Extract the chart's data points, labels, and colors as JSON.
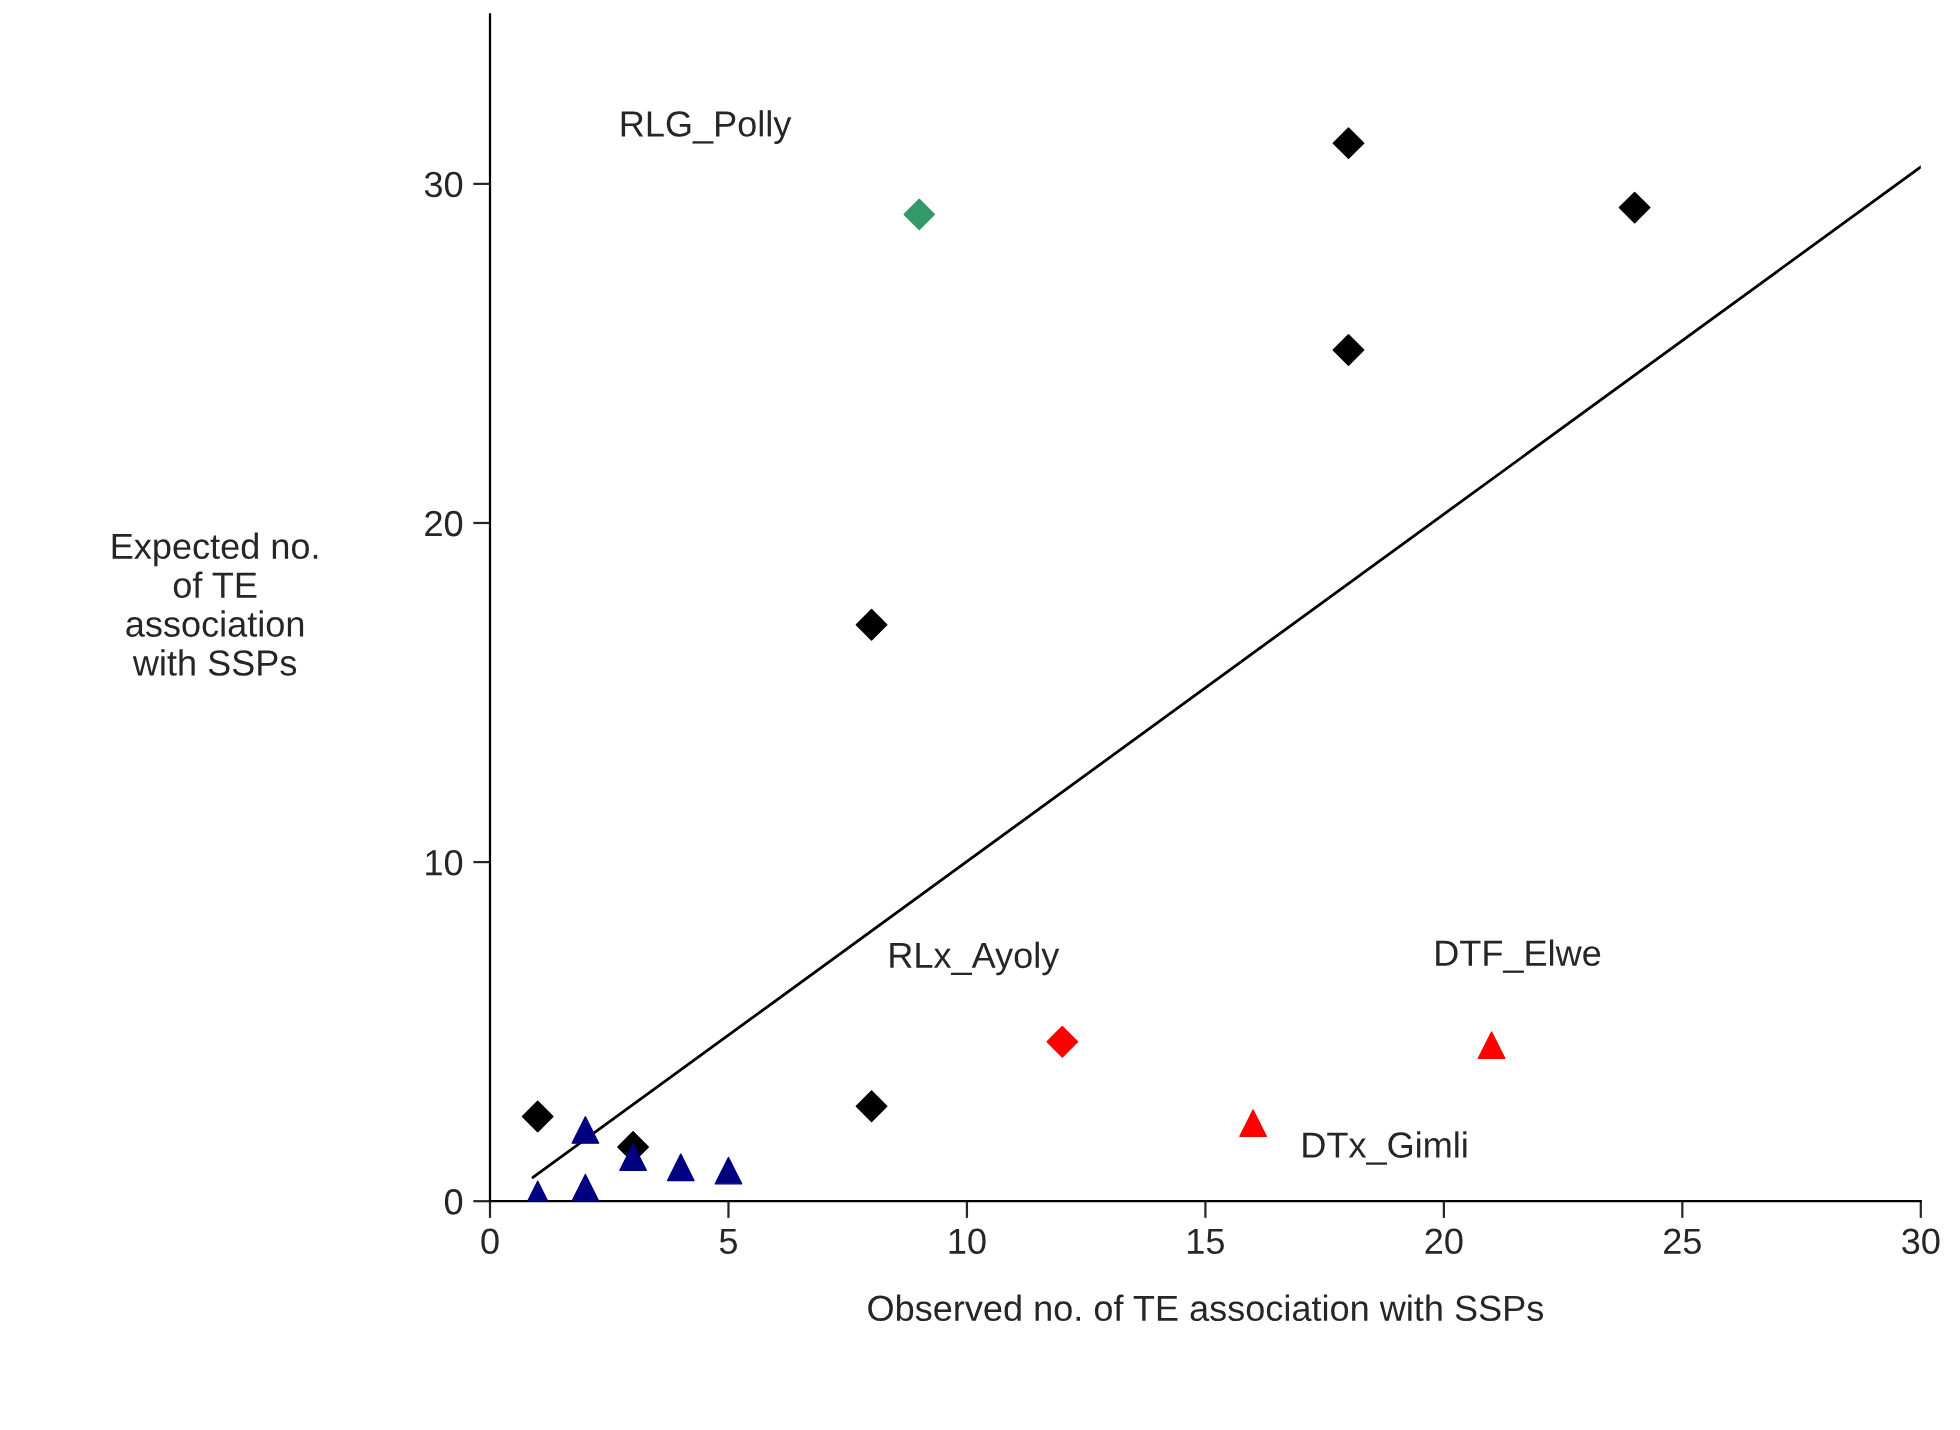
{
  "chart_data": {
    "type": "scatter",
    "xlabel": "Observed no. of TE association with SSPs",
    "ylabel": "Expected no.\nof TE\nassociation\nwith SSPs",
    "xlim": [
      0,
      30
    ],
    "ylim": [
      0,
      35
    ],
    "xticks": [
      0,
      5,
      10,
      15,
      20,
      25,
      30
    ],
    "yticks": [
      0,
      10,
      20,
      30
    ],
    "grid": false,
    "legend": false,
    "series": [
      {
        "marker": "diamond",
        "color": "#000000",
        "x": [
          1,
          3,
          8,
          8,
          18,
          18,
          24
        ],
        "values": [
          2.5,
          1.6,
          2.8,
          17.0,
          25.1,
          31.2,
          29.3
        ]
      },
      {
        "marker": "triangle",
        "color": "#000080",
        "x": [
          1,
          2,
          2,
          3,
          4,
          5
        ],
        "values": [
          0.2,
          2.1,
          0.4,
          1.3,
          1.0,
          0.9
        ]
      },
      {
        "marker": "diamond",
        "color": "#339966",
        "x": [
          9
        ],
        "values": [
          29.1
        ]
      },
      {
        "marker": "diamond",
        "color": "#ff0000",
        "x": [
          12
        ],
        "values": [
          4.7
        ]
      },
      {
        "marker": "triangle",
        "color": "#ff0000",
        "x": [
          16,
          21
        ],
        "values": [
          2.3,
          4.6
        ]
      },
      {
        "type": "line",
        "marker": "none",
        "line_style": "solid",
        "color": "#000000",
        "x": [
          0.9,
          30
        ],
        "values": [
          0.7,
          30.5
        ]
      }
    ],
    "annotations": [
      "RLG_Polly",
      {
        "text": "RLx_Ayoly",
        "x": 12,
        "y": 4.7
      },
      {
        "text": "DTF_Elwe",
        "x": 21,
        "y": 4.6
      },
      {
        "text": "DTx_Gimli",
        "x": 16,
        "y": 2.3
      }
    ]
  }
}
